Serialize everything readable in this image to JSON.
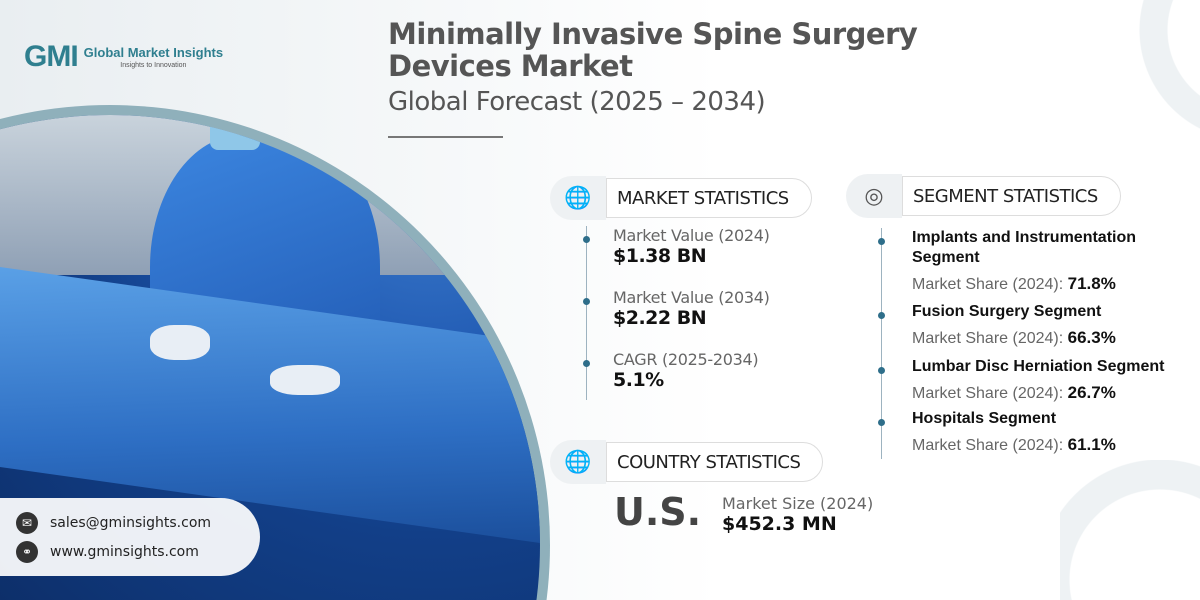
{
  "brand": {
    "logo": "GMI",
    "name": "Global Market Insights",
    "tagline": "Insights to Innovation"
  },
  "title": {
    "line1": "Minimally Invasive Spine Surgery",
    "line2": "Devices Market",
    "subtitle": "Global Forecast (2025 – 2034)"
  },
  "market": {
    "header": "MARKET STATISTICS",
    "items": [
      {
        "label": "Market Value (2024)",
        "value": "$1.38 BN"
      },
      {
        "label": "Market Value (2034)",
        "value": "$2.22 BN"
      },
      {
        "label": "CAGR (2025-2034)",
        "value": "5.1%"
      }
    ]
  },
  "segment": {
    "header": "SEGMENT STATISTICS",
    "share_label": "Market Share (2024):",
    "items": [
      {
        "name": "Implants and Instrumentation Segment",
        "share": "71.8%"
      },
      {
        "name": "Fusion Surgery Segment",
        "share": "66.3%"
      },
      {
        "name": "Lumbar Disc Herniation Segment",
        "share": "26.7%"
      },
      {
        "name": "Hospitals Segment",
        "share": "61.1%"
      }
    ]
  },
  "country": {
    "header": "COUNTRY STATISTICS",
    "name": "U.S.",
    "label": "Market Size (2024)",
    "value": "$452.3 MN"
  },
  "contact": {
    "email": "sales@gminsights.com",
    "website": "www.gminsights.com"
  },
  "colors": {
    "accent": "#2f7f8f",
    "photo_blue": "#1e57b0"
  }
}
